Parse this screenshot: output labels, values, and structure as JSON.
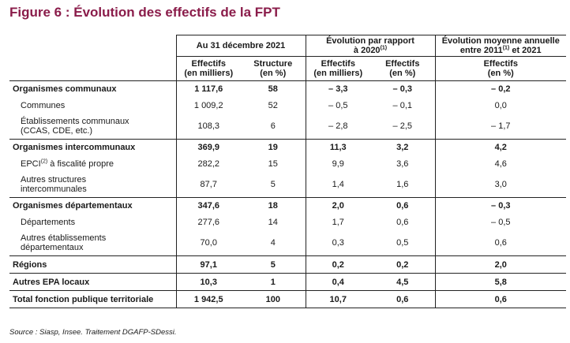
{
  "title": "Figure 6 : Évolution des effectifs de la FPT",
  "headers": {
    "group1": "Au 31 décembre 2021",
    "group2_line1": "Évolution par rapport",
    "group2_line2": "à 2020",
    "group2_sup": "(1)",
    "group3_line1": "Évolution moyenne annuelle",
    "group3_line2a": "entre 2011",
    "group3_sup": "(1)",
    "group3_line2b": " et 2021",
    "col1_line1": "Effectifs",
    "col1_line2": "(en milliers)",
    "col2_line1": "Structure",
    "col2_line2": "(en %)",
    "col3_line1": "Effectifs",
    "col3_line2": "(en milliers)",
    "col4_line1": "Effectifs",
    "col4_line2": "(en %)",
    "col5_line1": "Effectifs",
    "col5_line2": "(en %)"
  },
  "rows": {
    "communaux": {
      "label": "Organismes communaux",
      "v": [
        "1 117,6",
        "58",
        "– 3,3",
        "– 0,3",
        "– 0,2"
      ]
    },
    "communes": {
      "label": "Communes",
      "v": [
        "1 009,2",
        "52",
        "– 0,5",
        "– 0,1",
        "0,0"
      ]
    },
    "etab_communaux": {
      "label1": "Établissements communaux",
      "label2": "(CCAS, CDE, etc.)",
      "v": [
        "108,3",
        "6",
        "– 2,8",
        "– 2,5",
        "– 1,7"
      ]
    },
    "intercommunaux": {
      "label": "Organismes intercommunaux",
      "v": [
        "369,9",
        "19",
        "11,3",
        "3,2",
        "4,2"
      ]
    },
    "epci": {
      "label_a": "EPCI",
      "label_sup": "(2)",
      "label_b": " à fiscalité propre",
      "v": [
        "282,2",
        "15",
        "9,9",
        "3,6",
        "4,6"
      ]
    },
    "autres_inter": {
      "label1": "Autres structures",
      "label2": "intercommunales",
      "v": [
        "87,7",
        "5",
        "1,4",
        "1,6",
        "3,0"
      ]
    },
    "departementaux": {
      "label": "Organismes départementaux",
      "v": [
        "347,6",
        "18",
        "2,0",
        "0,6",
        "– 0,3"
      ]
    },
    "departements": {
      "label": "Départements",
      "v": [
        "277,6",
        "14",
        "1,7",
        "0,6",
        "– 0,5"
      ]
    },
    "autres_dep": {
      "label1": "Autres établissements",
      "label2": "départementaux",
      "v": [
        "70,0",
        "4",
        "0,3",
        "0,5",
        "0,6"
      ]
    },
    "regions": {
      "label": "Régions",
      "v": [
        "97,1",
        "5",
        "0,2",
        "0,2",
        "2,0"
      ]
    },
    "epa": {
      "label": "Autres EPA locaux",
      "v": [
        "10,3",
        "1",
        "0,4",
        "4,5",
        "5,8"
      ]
    },
    "total": {
      "label": "Total fonction publique territoriale",
      "v": [
        "1 942,5",
        "100",
        "10,7",
        "0,6",
        "0,6"
      ]
    }
  },
  "source": "Source : Siasp, Insee. Traitement DGAFP-SDessi."
}
